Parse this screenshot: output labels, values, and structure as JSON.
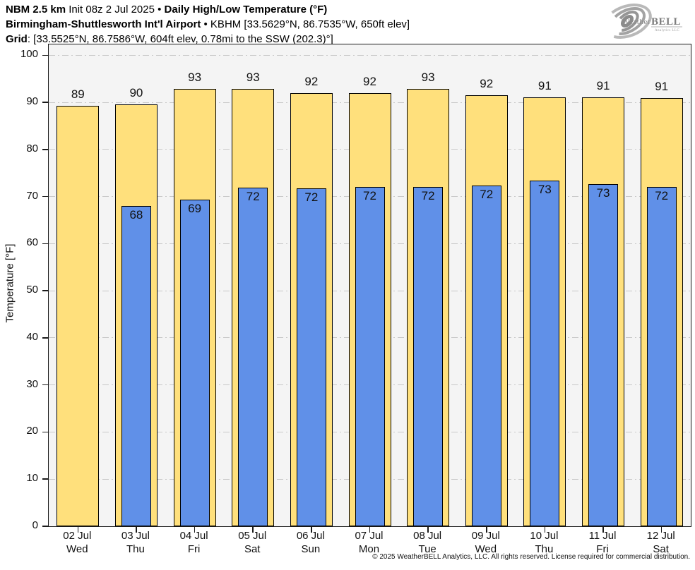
{
  "header": {
    "line1_bold1": "NBM 2.5 km",
    "line1_text1": " Init 08z 2 Jul 2025 • ",
    "line1_bold2": "Daily High/Low Temperature (°F)",
    "line2_bold1": "Birmingham-Shuttlesworth Int'l Airport",
    "line2_text1": " • KBHM [33.5629°N, 86.7535°W, 650ft elev]",
    "line3_bold1": "Grid",
    "line3_text1": ": [33.5525°N, 86.7586°W, 604ft elev, 0.78mi to the SSW (202.3)°]"
  },
  "logo": {
    "name": "WeatherBELL Analytics logo",
    "brand_weather": "Weather",
    "brand_bell": "BELL",
    "subtext": "Analytics LLC"
  },
  "chart_data": {
    "type": "bar",
    "title": "Daily High/Low Temperature (°F)",
    "subtitle": "NBM 2.5 km forecast for KBHM Birmingham-Shuttlesworth Int'l Airport",
    "xlabel": "",
    "ylabel": "Temperature [°F]",
    "ylim": [
      0,
      102.3
    ],
    "yticks": [
      0,
      10,
      20,
      30,
      40,
      50,
      60,
      70,
      80,
      90,
      100
    ],
    "grid": "horizontal dash-dot",
    "legend_position": "none",
    "categories": [
      "02 Jul",
      "03 Jul",
      "04 Jul",
      "05 Jul",
      "06 Jul",
      "07 Jul",
      "08 Jul",
      "09 Jul",
      "10 Jul",
      "11 Jul",
      "12 Jul"
    ],
    "weekdays": [
      "Wed",
      "Thu",
      "Fri",
      "Sat",
      "Sun",
      "Mon",
      "Tue",
      "Wed",
      "Thu",
      "Fri",
      "Sat"
    ],
    "series": [
      {
        "name": "Daily High",
        "color": "#FFE07C",
        "values": [
          89.3,
          89.5,
          92.9,
          92.8,
          91.9,
          92.0,
          92.8,
          91.5,
          91.1,
          91.1,
          90.9
        ],
        "labels": [
          "89",
          "90",
          "93",
          "93",
          "92",
          "92",
          "93",
          "92",
          "91",
          "91",
          "91"
        ]
      },
      {
        "name": "Daily Low",
        "color": "#6090E8",
        "values": [
          null,
          68.0,
          69.3,
          71.9,
          71.7,
          72.0,
          72.1,
          72.3,
          73.4,
          72.6,
          72.0
        ],
        "labels": [
          null,
          "68",
          "69",
          "72",
          "72",
          "72",
          "72",
          "72",
          "73",
          "73",
          "72"
        ]
      }
    ],
    "colors": {
      "high_bar": "#FFE07C",
      "low_bar": "#6090E8",
      "bar_border": "#000000",
      "plot_background": "#F4F4F4",
      "gridline": "#C8C8C8"
    }
  },
  "footer": {
    "copyright": "© 2025 WeatherBELL Analytics, LLC. All rights reserved. License required for commercial distribution."
  }
}
